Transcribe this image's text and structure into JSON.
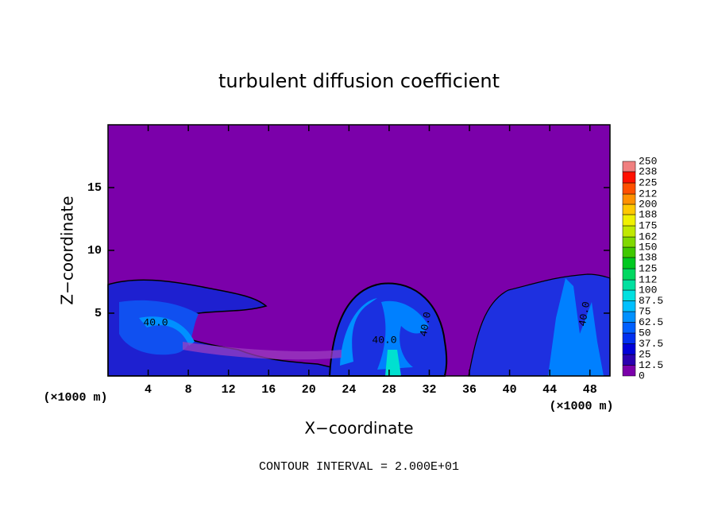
{
  "chart_data": {
    "type": "contour",
    "title": "turbulent diffusion coefficient",
    "x_label": "X−coordinate",
    "y_label": "Z−coordinate",
    "x_unit": "(×1000 m)",
    "note": "CONTOUR INTERVAL = 2.000E+01",
    "xlim": [
      0,
      50
    ],
    "xticks": [
      4,
      8,
      12,
      16,
      20,
      24,
      28,
      32,
      36,
      40,
      44,
      48
    ],
    "ylim": [
      0,
      20
    ],
    "yticks": [
      5,
      10,
      15
    ],
    "contour_labels": [
      "40.0",
      "40.0",
      "40.0",
      "40.0"
    ],
    "colorbar": {
      "lim": [
        0,
        250
      ],
      "levels": [
        0,
        12.5,
        25,
        37.5,
        50,
        62.5,
        75,
        87.5,
        100,
        112,
        125,
        138,
        150,
        162,
        175,
        188,
        200,
        212,
        225,
        238,
        250
      ],
      "colors": [
        "#7b00aa",
        "#2a00b0",
        "#0000d8",
        "#0030f0",
        "#0060ff",
        "#0090ff",
        "#00c0ff",
        "#00e0e0",
        "#00e0a0",
        "#00d860",
        "#00c820",
        "#40c800",
        "#80d800",
        "#c0e800",
        "#f0f000",
        "#ffc800",
        "#ff9000",
        "#ff5000",
        "#ff1000",
        "#f08080"
      ]
    }
  }
}
